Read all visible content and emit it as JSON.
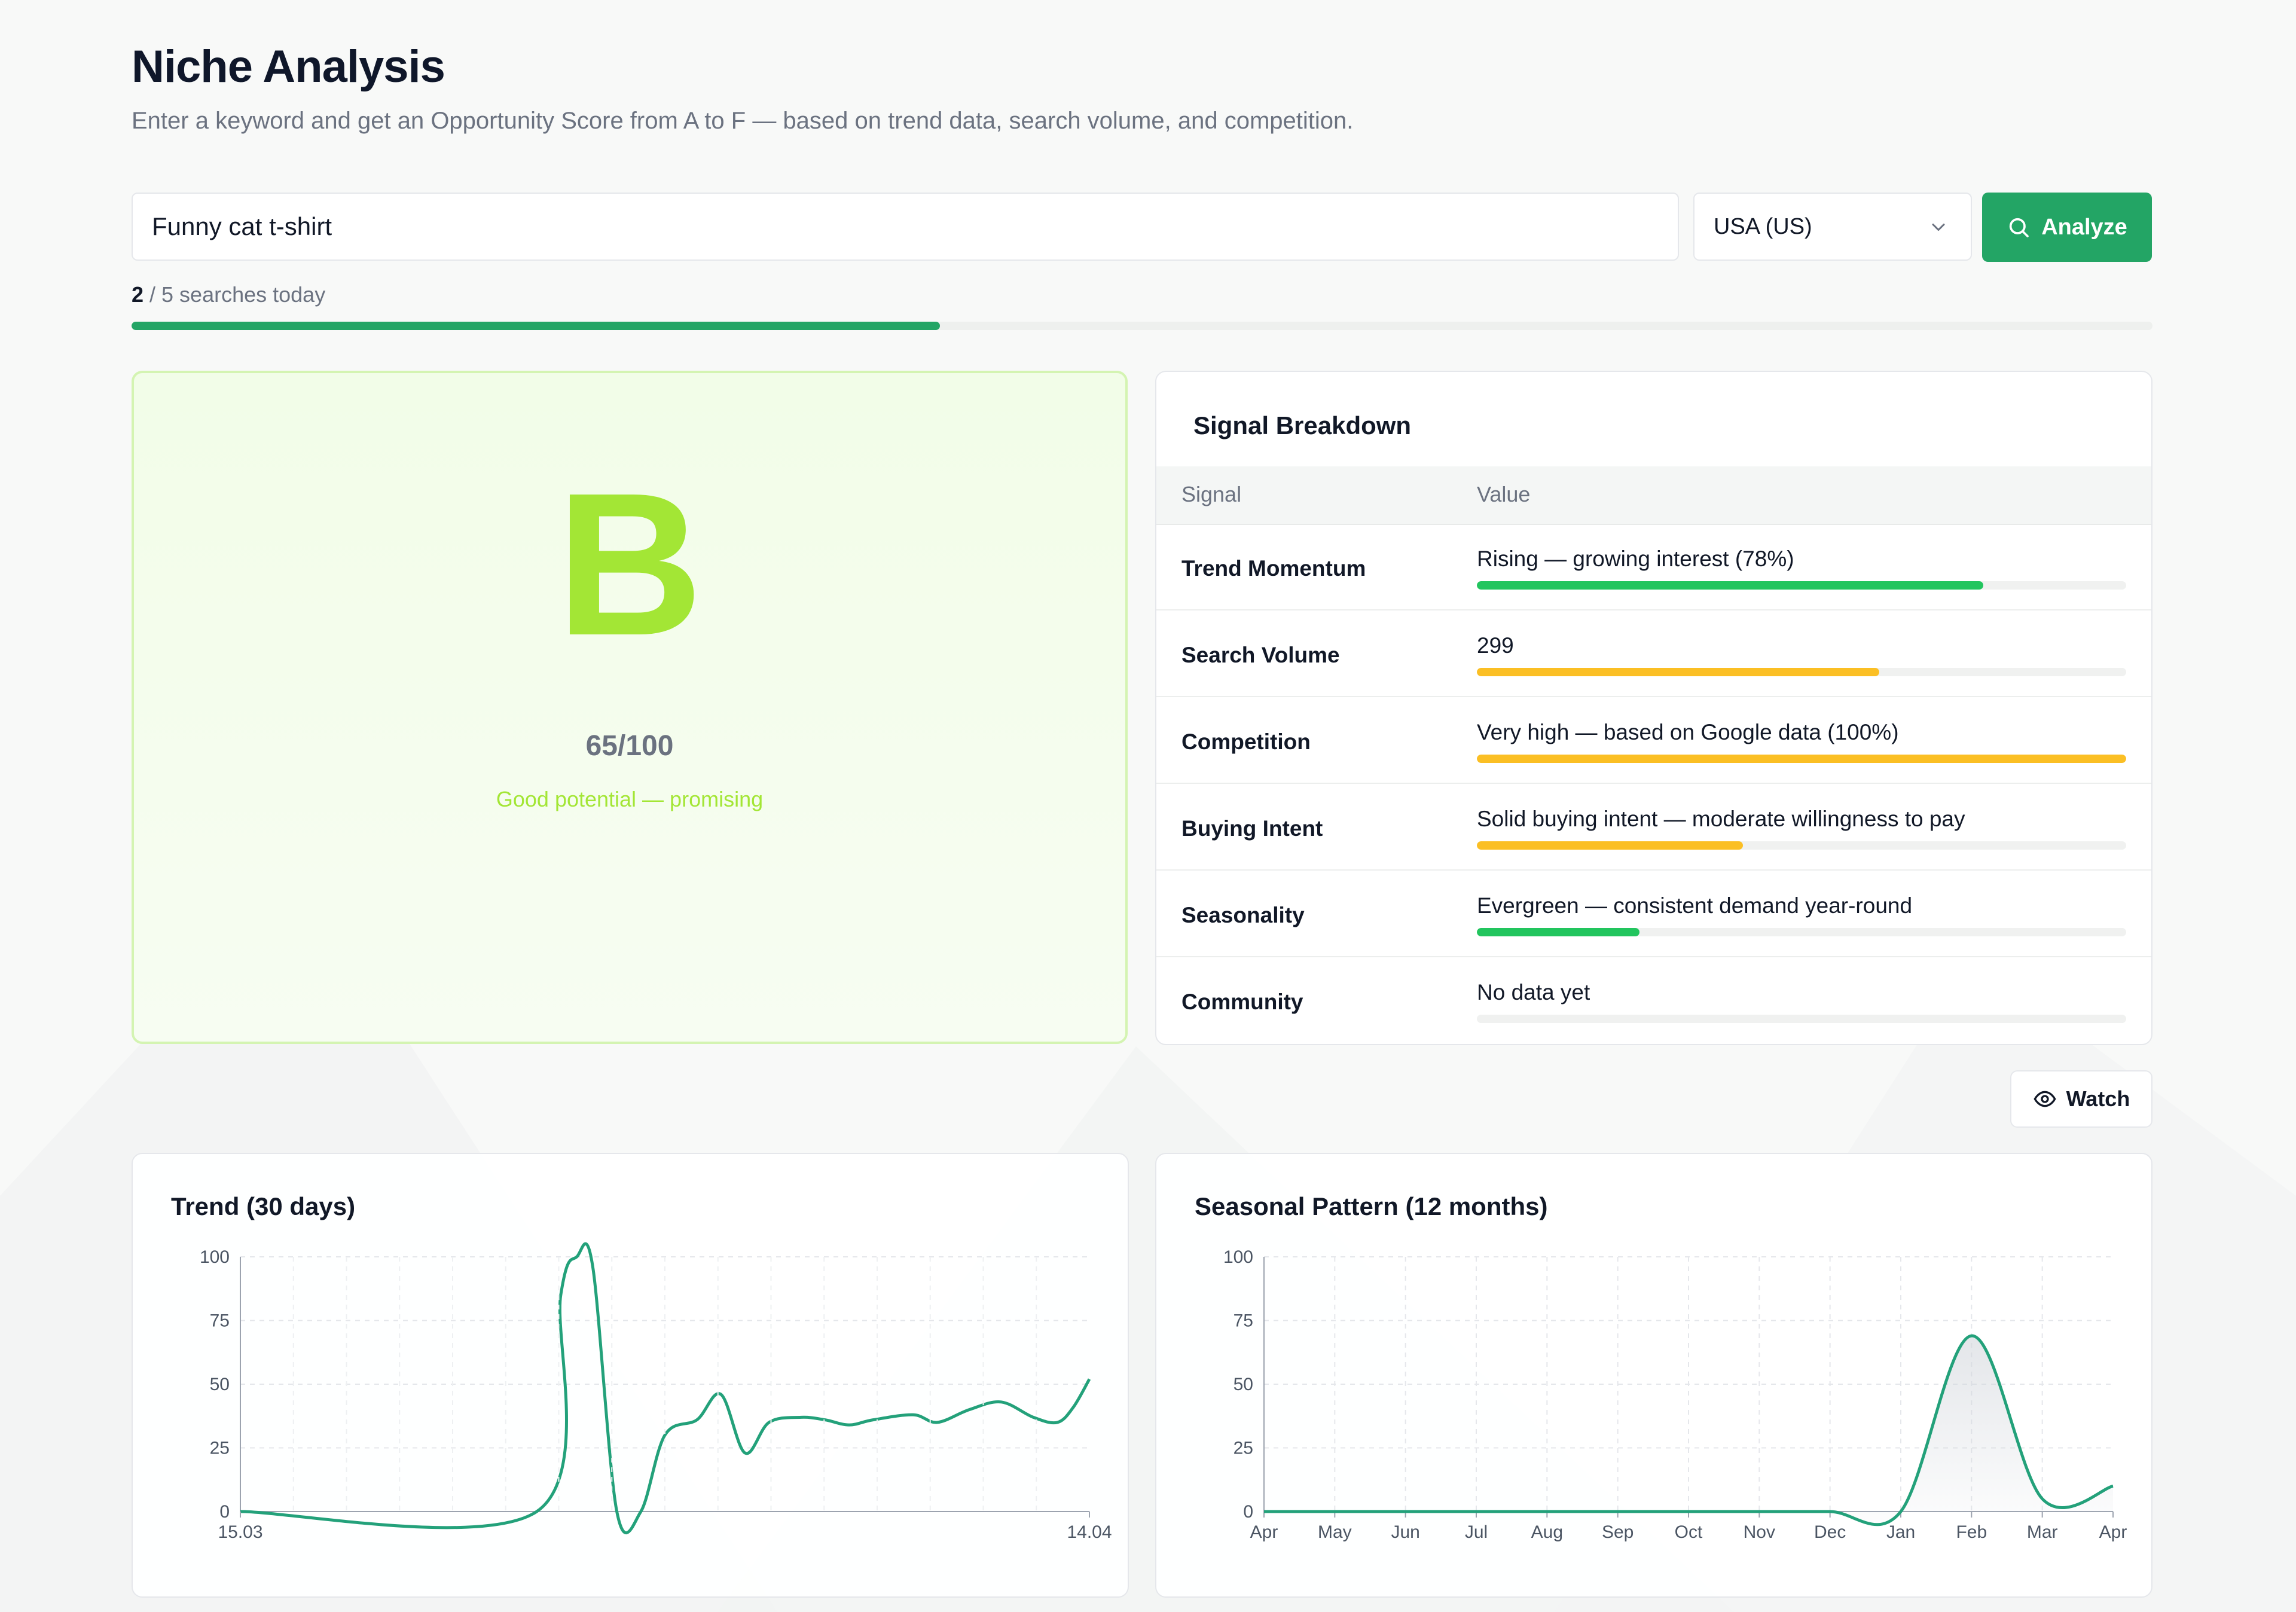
{
  "header": {
    "title": "Niche Analysis",
    "subtitle": "Enter a keyword and get an Opportunity Score from A to F — based on trend data, search volume, and competition."
  },
  "search": {
    "keyword_value": "Funny cat t-shirt",
    "country_value": "USA (US)",
    "analyze_label": "Analyze",
    "search_icon": "search-icon",
    "country_icon": "chevron-down-icon"
  },
  "quota": {
    "used": "2",
    "rest": " / 5 searches today",
    "fraction": 0.4
  },
  "grade": {
    "letter": "B",
    "score": "65/100",
    "description": "Good potential — promising",
    "color": "#a3e635"
  },
  "signals": {
    "title": "Signal Breakdown",
    "col_signal": "Signal",
    "col_value": "Value",
    "rows": [
      {
        "name": "Trend Momentum",
        "value": "Rising — growing interest (78%)",
        "fraction": 0.78,
        "color": "#22c55e"
      },
      {
        "name": "Search Volume",
        "value": "299",
        "fraction": 0.62,
        "color": "#fbbf24"
      },
      {
        "name": "Competition",
        "value": "Very high — based on Google data (100%)",
        "fraction": 1.0,
        "color": "#fbbf24"
      },
      {
        "name": "Buying Intent",
        "value": "Solid buying intent — moderate willingness to pay",
        "fraction": 0.41,
        "color": "#fbbf24"
      },
      {
        "name": "Seasonality",
        "value": "Evergreen — consistent demand year-round",
        "fraction": 0.25,
        "color": "#22c55e"
      },
      {
        "name": "Community",
        "value": "No data yet",
        "fraction": 0,
        "color": "#22c55e"
      }
    ]
  },
  "watch": {
    "label": "Watch",
    "icon": "eye-icon"
  },
  "charts": {
    "line_color": "#23a17a"
  },
  "chart_data": [
    {
      "type": "line",
      "title": "Trend (30 days)",
      "x_labels": [
        "15.03",
        "14.04"
      ],
      "ylim": [
        0,
        100
      ],
      "yticks": [
        0,
        25,
        50,
        75,
        100
      ],
      "grid": true,
      "series": [
        {
          "values": [
            0,
            0,
            0,
            0,
            0,
            0,
            0,
            0,
            0,
            0,
            0,
            0,
            0,
            0,
            0,
            0,
            0,
            0,
            0,
            0,
            0,
            0,
            0,
            0,
            0,
            0,
            0,
            0,
            0,
            0,
            0,
            0,
            0,
            0,
            0,
            0,
            0,
            0,
            0,
            0,
            0,
            0,
            0,
            0,
            0,
            0,
            0,
            0,
            0,
            0,
            0,
            0,
            0,
            0,
            0,
            0,
            0,
            0,
            0,
            0,
            0,
            0,
            0,
            0,
            0,
            0,
            0,
            0,
            0,
            0,
            0,
            0,
            0,
            0,
            0,
            0,
            0,
            0,
            0,
            0,
            0,
            0,
            0,
            0,
            0,
            0
          ]
        }
      ],
      "points": [
        [
          0,
          0
        ],
        [
          37,
          0
        ],
        [
          40,
          85
        ],
        [
          42,
          100
        ],
        [
          44,
          96
        ],
        [
          47,
          0
        ],
        [
          50,
          0
        ],
        [
          53,
          30
        ],
        [
          57,
          36
        ],
        [
          60,
          46
        ],
        [
          63,
          23
        ],
        [
          66,
          35
        ],
        [
          70,
          37
        ],
        [
          73,
          36
        ],
        [
          76,
          34
        ],
        [
          79,
          36
        ],
        [
          84,
          38
        ],
        [
          87,
          35
        ],
        [
          91,
          40
        ],
        [
          95,
          43
        ],
        [
          99,
          37
        ],
        [
          102,
          35
        ],
        [
          104,
          41
        ],
        [
          106,
          52
        ]
      ]
    },
    {
      "type": "area",
      "title": "Seasonal Pattern (12 months)",
      "categories": [
        "Apr",
        "May",
        "Jun",
        "Jul",
        "Aug",
        "Sep",
        "Oct",
        "Nov",
        "Dec",
        "Jan",
        "Feb",
        "Mar",
        "Apr"
      ],
      "values": [
        0,
        0,
        0,
        0,
        0,
        0,
        0,
        0,
        0,
        0,
        69,
        5,
        10
      ],
      "ylim": [
        0,
        100
      ],
      "yticks": [
        0,
        25,
        50,
        75,
        100
      ],
      "grid": true
    }
  ]
}
